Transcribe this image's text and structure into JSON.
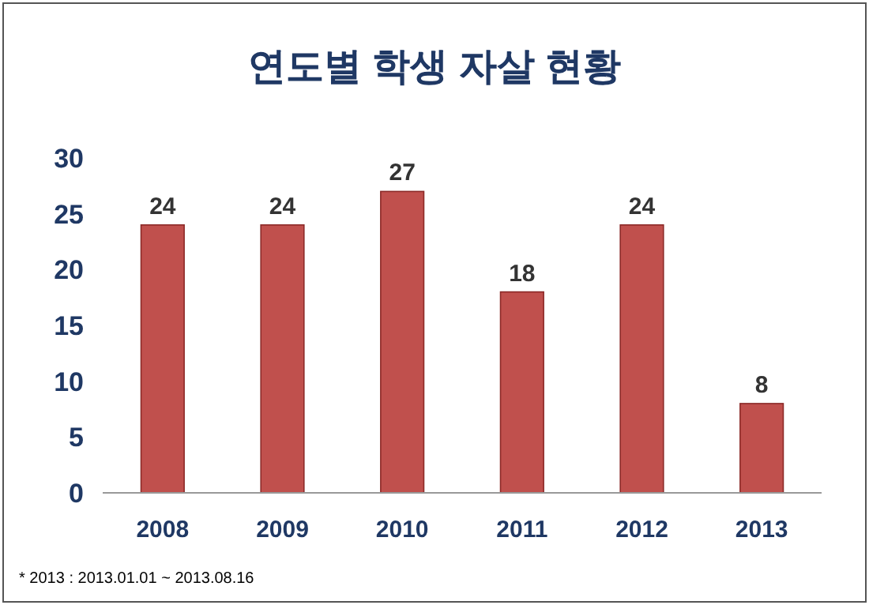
{
  "chart_data": {
    "type": "bar",
    "title": "연도별 학생 자살 현황",
    "categories": [
      "2008",
      "2009",
      "2010",
      "2011",
      "2012",
      "2013"
    ],
    "values": [
      24,
      24,
      27,
      18,
      24,
      8
    ],
    "color": "#c0504d",
    "ylim": [
      0,
      30
    ],
    "yticks": [
      0,
      5,
      10,
      15,
      20,
      25,
      30
    ],
    "data_labels": true,
    "annotations": [
      "* 2013 : 2013.01.01 ~ 2013.08.16"
    ]
  }
}
